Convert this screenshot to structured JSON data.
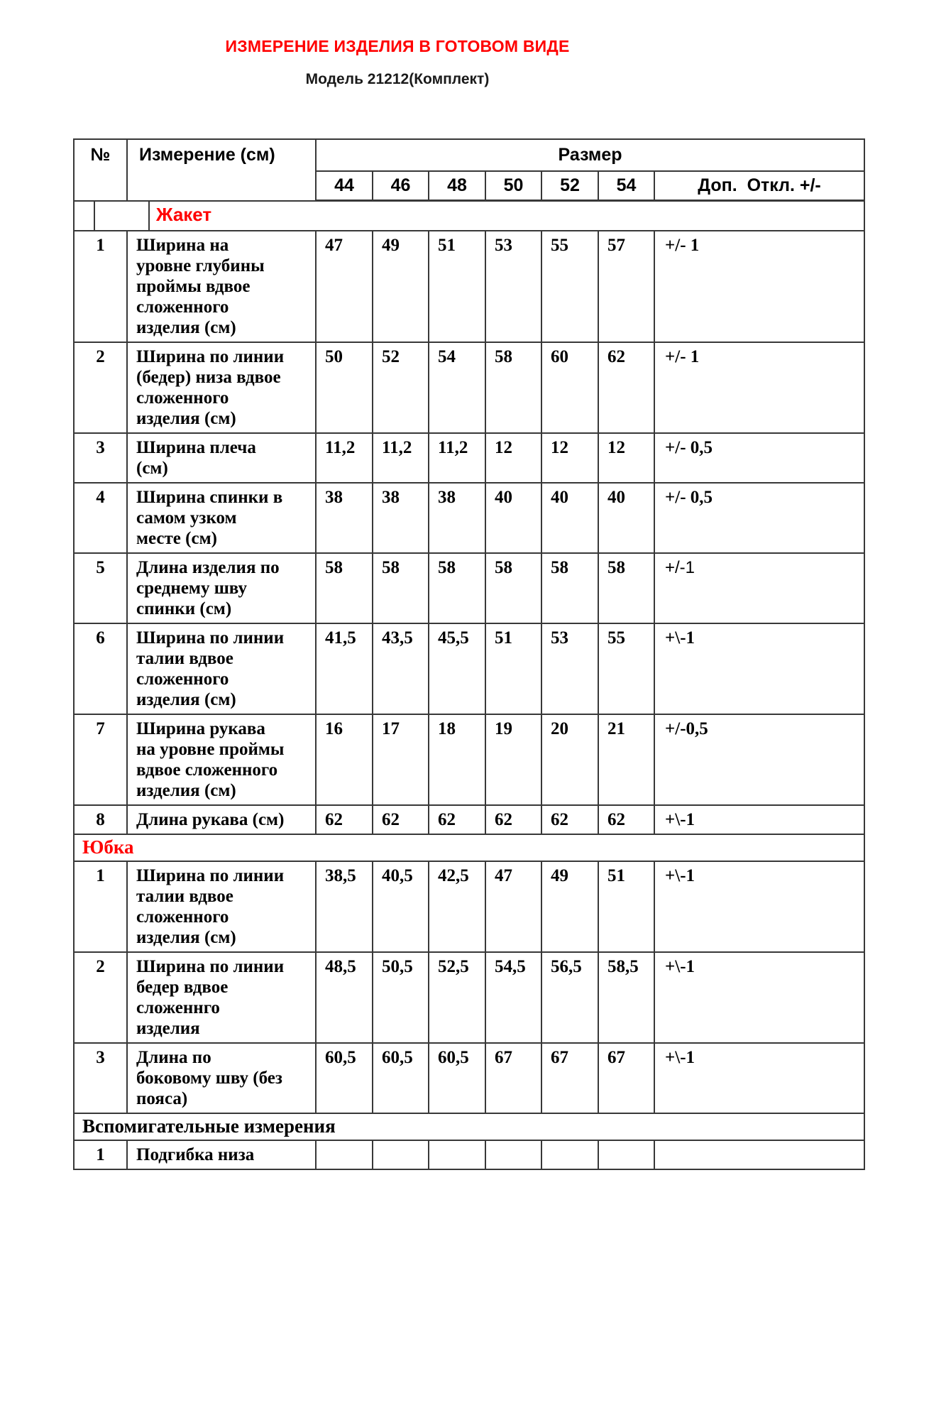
{
  "page": {
    "title": "ИЗМЕРЕНИЕ ИЗДЕЛИЯ В ГОТОВОМ ВИДЕ",
    "subtitle": "Модель 21212(Комплект)",
    "accent_color": "#ff0000"
  },
  "table": {
    "header": {
      "num": "№",
      "measurement": "Измерение (см)",
      "size_group": "Размер",
      "sizes": [
        "44",
        "46",
        "48",
        "50",
        "52",
        "54"
      ],
      "tolerance": "Доп.  Откл. +/-"
    },
    "sections": [
      {
        "label": "Жакет",
        "label_style": "sans-red",
        "indented": true,
        "rows": [
          {
            "num": "1",
            "name": "Ширина на\nуровне глубины\nпроймы вдвое\nсложенного\nизделия (см)",
            "values": [
              "47",
              "49",
              "51",
              "53",
              "55",
              "57"
            ],
            "tolerance": "+/- 1",
            "tolerance_style": "serif"
          },
          {
            "num": "2",
            "name": "Ширина по линии\n(бедер) низа вдвое\nсложенного\nизделия (см)",
            "values": [
              "50",
              "52",
              "54",
              "58",
              "60",
              "62"
            ],
            "tolerance": "+/- 1",
            "tolerance_style": "serif"
          },
          {
            "num": "3",
            "name": "Ширина плеча\n(см)",
            "values": [
              "11,2",
              "11,2",
              "11,2",
              "12",
              "12",
              "12"
            ],
            "tolerance": "+/- 0,5",
            "tolerance_style": "serif"
          },
          {
            "num": "4",
            "name": "Ширина спинки в\nсамом узком\nместе (см)",
            "values": [
              "38",
              "38",
              "38",
              "40",
              "40",
              "40"
            ],
            "tolerance": "+/- 0,5",
            "tolerance_style": "serif"
          },
          {
            "num": "5",
            "name": "Длина изделия по\nсреднему шву\nспинки (см)",
            "values": [
              "58",
              "58",
              "58",
              "58",
              "58",
              "58"
            ],
            "tolerance": "+/-1",
            "tolerance_style": "sans"
          },
          {
            "num": "6",
            "name": "Ширина по линии\nталии вдвое\nсложенного\nизделия (см)",
            "values": [
              "41,5",
              "43,5",
              "45,5",
              "51",
              "53",
              "55"
            ],
            "tolerance": "+\\-1",
            "tolerance_style": "serif"
          },
          {
            "num": "7",
            "name": "Ширина рукава\nна уровне проймы\nвдвое сложенного\nизделия (см)",
            "values": [
              "16",
              "17",
              "18",
              "19",
              "20",
              "21"
            ],
            "tolerance": "+/-0,5",
            "tolerance_style": "serif"
          },
          {
            "num": "8",
            "name": "Длина рукава (см)",
            "values": [
              "62",
              "62",
              "62",
              "62",
              "62",
              "62"
            ],
            "tolerance": "+\\-1",
            "tolerance_style": "serif"
          }
        ]
      },
      {
        "label": "Юбка",
        "label_style": "serif-red",
        "indented": false,
        "rows": [
          {
            "num": "1",
            "name": "Ширина по линии\nталии вдвое\nсложенного\nизделия (см)",
            "values": [
              "38,5",
              "40,5",
              "42,5",
              "47",
              "49",
              "51"
            ],
            "tolerance": "+\\-1",
            "tolerance_style": "serif"
          },
          {
            "num": "2",
            "name": "Ширина по линии\nбедер вдвое\nсложеннго\nизделия",
            "values": [
              "48,5",
              "50,5",
              "52,5",
              "54,5",
              "56,5",
              "58,5"
            ],
            "tolerance": "+\\-1",
            "tolerance_style": "serif"
          },
          {
            "num": "3",
            "name": "Длина по\nбоковому шву (без\nпояса)",
            "values": [
              "60,5",
              "60,5",
              "60,5",
              "67",
              "67",
              "67"
            ],
            "tolerance": "+\\-1",
            "tolerance_style": "serif"
          }
        ]
      },
      {
        "label": "Вспомигательные измерения",
        "label_style": "serif-black",
        "indented": false,
        "rows": [
          {
            "num": "1",
            "name": "Подгибка низа",
            "values": [
              "",
              "",
              "",
              "",
              "",
              ""
            ],
            "tolerance": "",
            "tolerance_style": "serif"
          }
        ]
      }
    ]
  }
}
